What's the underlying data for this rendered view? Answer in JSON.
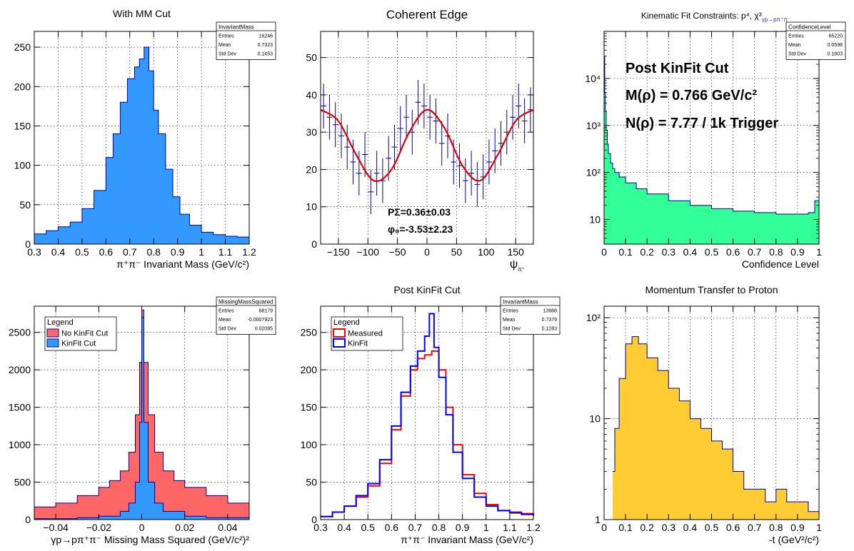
{
  "colors": {
    "frame": "#000000",
    "grid": "#000000",
    "blue_fill": "#3399ff",
    "blue_line": "#0000ff",
    "navy_line": "#000099",
    "red_fill": "#ff6666",
    "red_line": "#ff0000",
    "green_fill": "#33ff99",
    "orange_fill": "#ffcc33",
    "fit_red": "#dd0000"
  },
  "chart_data": [
    {
      "id": "p1",
      "type": "area",
      "title": "With MM Cut",
      "xlabel": "π⁺π⁻ Invariant Mass (GeV/c²)",
      "ylabel": "",
      "xlim": [
        0.3,
        1.2
      ],
      "ylim": [
        0,
        270
      ],
      "xticks": [
        "0.3",
        "0.4",
        "0.5",
        "0.6",
        "0.7",
        "0.8",
        "0.9",
        "1",
        "1.1",
        "1.2"
      ],
      "yticks": [
        "0",
        "50",
        "100",
        "150",
        "200",
        "250"
      ],
      "grid": true,
      "stats": {
        "name": "InvariantMass",
        "rows": [
          [
            "Entries",
            "16246"
          ],
          [
            "Mean",
            "0.7323"
          ],
          [
            "Std Dev",
            "0.1453"
          ]
        ]
      },
      "series": [
        {
          "style": "hist",
          "color": "blue_fill",
          "line": "navy_line",
          "x": [
            0.3,
            0.35,
            0.4,
            0.45,
            0.5,
            0.55,
            0.6,
            0.63,
            0.66,
            0.69,
            0.72,
            0.74,
            0.76,
            0.78,
            0.8,
            0.82,
            0.85,
            0.88,
            0.91,
            0.95,
            1.0,
            1.05,
            1.1,
            1.15,
            1.2
          ],
          "y": [
            13,
            17,
            22,
            28,
            45,
            68,
            110,
            140,
            180,
            210,
            225,
            235,
            250,
            220,
            170,
            140,
            95,
            60,
            38,
            24,
            15,
            12,
            10,
            9,
            8
          ]
        }
      ]
    },
    {
      "id": "p2",
      "type": "scatter",
      "title": "Coherent Edge",
      "xlabel": "ψ",
      "xlabel_sub": "π⁺",
      "ylabel": "",
      "xlim": [
        -180,
        180
      ],
      "ylim": [
        0,
        57
      ],
      "xticks": [
        "−150",
        "−100",
        "−50",
        "0",
        "50",
        "100",
        "150"
      ],
      "yticks": [
        "0",
        "10",
        "20",
        "30",
        "40",
        "50"
      ],
      "grid": true,
      "annotations": [
        "PΣ=0.36±0.03",
        "φ₀=-3.53±2.23"
      ],
      "fit": {
        "color": "fit_red",
        "x": [
          -180,
          -150,
          -120,
          -90,
          -60,
          -30,
          0,
          30,
          60,
          90,
          120,
          150,
          180
        ],
        "y": [
          36,
          33,
          24,
          17,
          20,
          30,
          36,
          31,
          21,
          17,
          24,
          33,
          36
        ]
      },
      "series": [
        {
          "style": "errorbar",
          "color": "navy_line",
          "x": [
            -175,
            -165,
            -155,
            -145,
            -135,
            -125,
            -115,
            -105,
            -95,
            -85,
            -75,
            -65,
            -55,
            -45,
            -35,
            -25,
            -15,
            -5,
            5,
            15,
            25,
            35,
            45,
            55,
            65,
            75,
            85,
            95,
            105,
            115,
            125,
            135,
            145,
            155,
            165,
            175
          ],
          "y": [
            37,
            34,
            32,
            29,
            26,
            22,
            19,
            24,
            14,
            19,
            17,
            23,
            26,
            31,
            34,
            30,
            38,
            37,
            34,
            33,
            27,
            29,
            22,
            21,
            17,
            19,
            16,
            18,
            22,
            25,
            27,
            30,
            34,
            37,
            33,
            36
          ],
          "err": [
            6,
            6,
            6,
            6,
            6,
            6,
            6,
            6,
            6,
            6,
            6,
            6,
            6,
            6,
            6,
            6,
            6,
            6,
            6,
            6,
            6,
            6,
            6,
            6,
            6,
            6,
            6,
            6,
            6,
            6,
            6,
            6,
            6,
            6,
            6,
            6
          ]
        }
      ]
    },
    {
      "id": "p3",
      "type": "area",
      "title": "Kinematic Fit Constraints: p⁴, χ³",
      "title_sub": "γp→pπ⁺π⁻",
      "xlabel": "Confidence Level",
      "ylabel": "",
      "xlim": [
        0,
        1
      ],
      "ylim": [
        3,
        100000
      ],
      "yscale": "log",
      "xticks": [
        "0",
        "0.1",
        "0.2",
        "0.3",
        "0.4",
        "0.5",
        "0.6",
        "0.7",
        "0.8",
        "0.9",
        "1"
      ],
      "yticks": [
        "10",
        "10²",
        "10³",
        "10⁴"
      ],
      "grid": true,
      "stats": {
        "name": "ConfidenceLevel",
        "rows": [
          [
            "Entries",
            "65220"
          ],
          [
            "Mean",
            "0.0598"
          ],
          [
            "Std Dev",
            "0.1803"
          ]
        ]
      },
      "annotations": [
        "Post KinFit Cut",
        "M(ρ) = 0.766 GeV/c²",
        "N(ρ) = 7.77 / 1k Trigger"
      ],
      "series": [
        {
          "style": "hist",
          "color": "green_fill",
          "line": "navy_line",
          "x": [
            0.0,
            0.003,
            0.006,
            0.01,
            0.015,
            0.02,
            0.03,
            0.04,
            0.05,
            0.07,
            0.1,
            0.15,
            0.2,
            0.3,
            0.4,
            0.5,
            0.6,
            0.7,
            0.8,
            0.9,
            0.95,
            0.98,
            1.0
          ],
          "y": [
            30000,
            5000,
            2000,
            800,
            400,
            250,
            160,
            120,
            100,
            80,
            60,
            45,
            35,
            25,
            20,
            17,
            15,
            14,
            13,
            13,
            14,
            25,
            40
          ]
        }
      ]
    },
    {
      "id": "p4",
      "type": "area",
      "title": "",
      "xlabel": "γp→pπ⁺π⁻ Missing Mass Squared (GeV/c²)²",
      "ylabel": "",
      "xlim": [
        -0.05,
        0.05
      ],
      "ylim": [
        0,
        2850
      ],
      "xticks": [
        "−0.04",
        "−0.02",
        "0",
        "0.02",
        "0.04"
      ],
      "yticks": [
        "0",
        "500",
        "1000",
        "1500",
        "2000",
        "2500"
      ],
      "grid": true,
      "stats": {
        "name": "MissingMassSquared",
        "rows": [
          [
            "Entries",
            "68179"
          ],
          [
            "Mean",
            "-0.0007923"
          ],
          [
            "Std Dev",
            "0.02085"
          ]
        ]
      },
      "legend": {
        "title": "Legend",
        "position": "top-left",
        "entries": [
          {
            "name": "No KinFit Cut",
            "color": "red_fill"
          },
          {
            "name": "KinFit Cut",
            "color": "blue_fill"
          }
        ]
      },
      "series": [
        {
          "name": "No KinFit Cut",
          "style": "hist",
          "color": "red_fill",
          "line": "navy_line",
          "x": [
            -0.05,
            -0.04,
            -0.03,
            -0.02,
            -0.015,
            -0.01,
            -0.006,
            -0.003,
            -0.001,
            0.0,
            0.001,
            0.003,
            0.006,
            0.01,
            0.015,
            0.02,
            0.03,
            0.04,
            0.05
          ],
          "y": [
            170,
            220,
            320,
            430,
            520,
            650,
            900,
            1400,
            2100,
            2800,
            2100,
            1400,
            900,
            650,
            520,
            430,
            320,
            220,
            170
          ]
        },
        {
          "name": "KinFit Cut",
          "style": "hist",
          "color": "blue_fill",
          "line": "navy_line",
          "x": [
            -0.05,
            -0.03,
            -0.02,
            -0.01,
            -0.006,
            -0.003,
            -0.001,
            0.0,
            0.001,
            0.003,
            0.006,
            0.01,
            0.02,
            0.03,
            0.05
          ],
          "y": [
            12,
            25,
            45,
            110,
            220,
            500,
            1300,
            2700,
            1300,
            500,
            220,
            110,
            45,
            25,
            12
          ]
        }
      ]
    },
    {
      "id": "p5",
      "type": "line",
      "title": "Post KinFit Cut",
      "xlabel": "π⁺π⁻ Invariant Mass (GeV/c²)",
      "ylabel": "",
      "xlim": [
        0.3,
        1.2
      ],
      "ylim": [
        0,
        285
      ],
      "xticks": [
        "0.3",
        "0.4",
        "0.5",
        "0.6",
        "0.7",
        "0.8",
        "0.9",
        "1",
        "1.1",
        "1.2"
      ],
      "yticks": [
        "0",
        "50",
        "100",
        "150",
        "200",
        "250"
      ],
      "grid": true,
      "stats": {
        "name": "InvariantMass",
        "rows": [
          [
            "Entries",
            "13988"
          ],
          [
            "Mean",
            "0.7379"
          ],
          [
            "Std Dev",
            "0.1283"
          ]
        ]
      },
      "legend": {
        "title": "Legend",
        "position": "top-left",
        "entries": [
          {
            "name": "Measured",
            "color": "red_line"
          },
          {
            "name": "KinFit",
            "color": "blue_line"
          }
        ]
      },
      "series": [
        {
          "name": "Measured",
          "style": "step",
          "color": "red_line",
          "x": [
            0.3,
            0.35,
            0.4,
            0.45,
            0.5,
            0.55,
            0.6,
            0.64,
            0.68,
            0.71,
            0.74,
            0.77,
            0.8,
            0.83,
            0.86,
            0.9,
            0.95,
            1.0,
            1.05,
            1.1,
            1.15,
            1.2
          ],
          "y": [
            4,
            10,
            18,
            30,
            45,
            75,
            120,
            165,
            200,
            215,
            220,
            225,
            200,
            150,
            100,
            60,
            35,
            20,
            12,
            10,
            8,
            6
          ]
        },
        {
          "name": "KinFit",
          "style": "step",
          "color": "blue_line",
          "x": [
            0.3,
            0.35,
            0.4,
            0.45,
            0.5,
            0.55,
            0.6,
            0.64,
            0.68,
            0.71,
            0.74,
            0.76,
            0.78,
            0.8,
            0.83,
            0.86,
            0.9,
            0.95,
            1.0,
            1.05,
            1.1,
            1.15,
            1.2
          ],
          "y": [
            4,
            10,
            18,
            32,
            48,
            80,
            125,
            170,
            205,
            225,
            245,
            275,
            230,
            190,
            140,
            90,
            55,
            30,
            18,
            12,
            9,
            7,
            5
          ]
        }
      ]
    },
    {
      "id": "p6",
      "type": "area",
      "title": "Momentum Transfer to Proton",
      "xlabel": "-t (GeV²/c²)",
      "ylabel": "",
      "xlim": [
        0,
        1
      ],
      "ylim": [
        1,
        130
      ],
      "yscale": "log",
      "xticks": [
        "0",
        "0.1",
        "0.2",
        "0.3",
        "0.4",
        "0.5",
        "0.6",
        "0.7",
        "0.8",
        "0.9",
        "1"
      ],
      "yticks": [
        "1",
        "10",
        "10²"
      ],
      "grid": true,
      "series": [
        {
          "style": "hist",
          "color": "orange_fill",
          "line": "navy_line",
          "x": [
            0.04,
            0.05,
            0.07,
            0.1,
            0.13,
            0.16,
            0.2,
            0.25,
            0.3,
            0.35,
            0.4,
            0.45,
            0.5,
            0.55,
            0.6,
            0.65,
            0.7,
            0.75,
            0.8,
            0.85,
            0.9,
            0.95,
            1.0
          ],
          "y": [
            3,
            8,
            25,
            55,
            65,
            55,
            40,
            30,
            20,
            15,
            10,
            8,
            6,
            5,
            3,
            2,
            2,
            1.5,
            2,
            1.5,
            1.5,
            1.2,
            1
          ]
        }
      ]
    }
  ]
}
